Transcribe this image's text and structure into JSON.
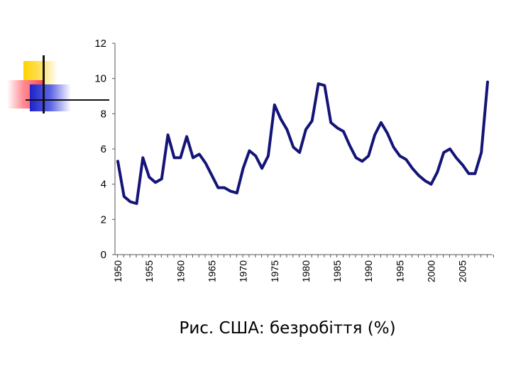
{
  "caption": "Рис. США: безробіття (%)",
  "colors": {
    "line": "#141478",
    "axis": "#555555"
  },
  "chart_data": {
    "type": "line",
    "title": "",
    "xlabel": "",
    "ylabel": "",
    "xlim": [
      1950,
      2009
    ],
    "ylim": [
      0,
      12
    ],
    "yticks": [
      "0",
      "2",
      "4",
      "6",
      "8",
      "10",
      "12"
    ],
    "xticks": [
      "1950",
      "1955",
      "1960",
      "1965",
      "1970",
      "1975",
      "1980",
      "1985",
      "1990",
      "1995",
      "2000",
      "2005"
    ],
    "grid": false,
    "x": [
      1950,
      1951,
      1952,
      1953,
      1954,
      1955,
      1956,
      1957,
      1958,
      1959,
      1960,
      1961,
      1962,
      1963,
      1964,
      1965,
      1966,
      1967,
      1968,
      1969,
      1970,
      1971,
      1972,
      1973,
      1974,
      1975,
      1976,
      1977,
      1978,
      1979,
      1980,
      1981,
      1982,
      1983,
      1984,
      1985,
      1986,
      1987,
      1988,
      1989,
      1990,
      1991,
      1992,
      1993,
      1994,
      1995,
      1996,
      1997,
      1998,
      1999,
      2000,
      2001,
      2002,
      2003,
      2004,
      2005,
      2006,
      2007,
      2008,
      2009
    ],
    "series": [
      {
        "values": [
          5.3,
          3.3,
          3.0,
          2.9,
          5.5,
          4.4,
          4.1,
          4.3,
          6.8,
          5.5,
          5.5,
          6.7,
          5.5,
          5.7,
          5.2,
          4.5,
          3.8,
          3.8,
          3.6,
          3.5,
          4.9,
          5.9,
          5.6,
          4.9,
          5.6,
          8.5,
          7.7,
          7.1,
          6.1,
          5.8,
          7.1,
          7.6,
          9.7,
          9.6,
          7.5,
          7.2,
          7.0,
          6.2,
          5.5,
          5.3,
          5.6,
          6.8,
          7.5,
          6.9,
          6.1,
          5.6,
          5.4,
          4.9,
          4.5,
          4.2,
          4.0,
          4.7,
          5.8,
          6.0,
          5.5,
          5.1,
          4.6,
          4.6,
          5.8,
          9.8
        ]
      }
    ]
  }
}
